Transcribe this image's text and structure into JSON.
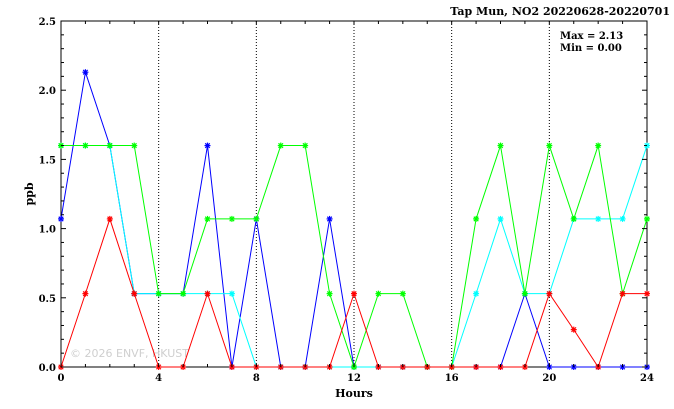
{
  "chart_data": {
    "type": "line",
    "title": "Tap Mun, NO2 20220628-20220701",
    "xlabel": "Hours",
    "ylabel": "ppb",
    "xlim": [
      0,
      24
    ],
    "ylim": [
      0,
      2.5
    ],
    "x_ticks": [
      0,
      4,
      8,
      12,
      16,
      20,
      24
    ],
    "y_ticks": [
      "0.0",
      "0.5",
      "1.0",
      "1.5",
      "2.0",
      "2.5"
    ],
    "grid": "dotted-vertical-every-4h",
    "x": [
      0,
      1,
      2,
      3,
      4,
      5,
      6,
      7,
      8,
      9,
      10,
      11,
      12,
      13,
      14,
      15,
      16,
      17,
      18,
      19,
      20,
      21,
      22,
      23,
      24
    ],
    "series": [
      {
        "color": "#0000ff",
        "values": [
          1.07,
          2.13,
          1.6,
          0.53,
          0.53,
          0.53,
          1.6,
          0.0,
          1.07,
          0.0,
          0.0,
          1.07,
          0.0,
          0.0,
          0.0,
          0.0,
          0.0,
          0.0,
          0.0,
          0.53,
          0.0,
          0.0,
          0.0,
          0.0,
          0.0
        ]
      },
      {
        "color": "#00ffff",
        "values": [
          1.6,
          1.6,
          1.6,
          0.53,
          0.53,
          0.53,
          0.53,
          0.53,
          0.0,
          0.0,
          0.0,
          0.0,
          0.0,
          0.0,
          0.0,
          0.0,
          0.0,
          0.53,
          1.07,
          0.53,
          0.53,
          1.07,
          1.07,
          1.07,
          1.6
        ]
      },
      {
        "color": "#00ff00",
        "values": [
          1.6,
          1.6,
          1.6,
          1.6,
          0.53,
          0.53,
          1.07,
          1.07,
          1.07,
          1.6,
          1.6,
          0.53,
          0.0,
          0.53,
          0.53,
          0.0,
          0.0,
          1.07,
          1.6,
          0.53,
          1.6,
          1.07,
          1.6,
          0.53,
          1.07
        ]
      },
      {
        "color": "#ff0000",
        "values": [
          0.0,
          0.53,
          1.07,
          0.53,
          0.0,
          0.0,
          0.53,
          0.0,
          0.0,
          0.0,
          0.0,
          0.0,
          0.53,
          0.0,
          0.0,
          0.0,
          0.0,
          0.0,
          0.0,
          0.0,
          0.53,
          0.27,
          0.0,
          0.53,
          0.53
        ]
      }
    ],
    "stats": {
      "max": "Max = 2.13",
      "min": "Min = 0.00"
    },
    "watermark": "© 2026 ENVF, HKUST"
  }
}
